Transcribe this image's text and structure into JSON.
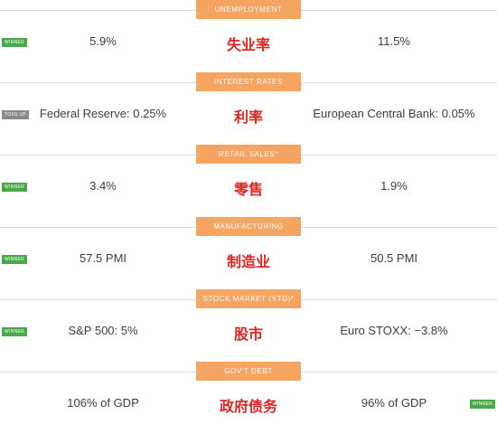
{
  "colors": {
    "section_tag": "#f5a461",
    "chinese_label": "#e02424",
    "winner_badge": "#4aa84a",
    "toss_up_badge": "#8a8a8a",
    "divider": "#dcdcdc"
  },
  "sections": [
    {
      "title": "UNEMPLOYMENT",
      "cn": "失业率",
      "left": "5.9%",
      "right": "11.5%",
      "badge": "WINNER",
      "badge_side": "left",
      "badge_type": "winner"
    },
    {
      "title": "INTEREST RATES",
      "cn": "利率",
      "left": "Federal Reserve: 0.25%",
      "right": "European Central Bank: 0.05%",
      "badge": "TOSS UP",
      "badge_side": "left",
      "badge_type": "toss-up"
    },
    {
      "title": "RETAIL SALES*",
      "cn": "零售",
      "left": "3.4%",
      "right": "1.9%",
      "badge": "WINNER",
      "badge_side": "left",
      "badge_type": "winner"
    },
    {
      "title": "MANUFACTURING",
      "cn": "制造业",
      "left": "57.5 PMI",
      "right": "50.5 PMI",
      "badge": "WINNER",
      "badge_side": "left",
      "badge_type": "winner"
    },
    {
      "title": "STOCK MARKET (YTD)*",
      "cn": "股市",
      "left": "S&P 500: 5%",
      "right": "Euro STOXX: −3.8%",
      "badge": "WINNER",
      "badge_side": "left",
      "badge_type": "winner"
    },
    {
      "title": "GOV'T DEBT",
      "cn": "政府债务",
      "left": "106% of GDP",
      "right": "96% of GDP",
      "badge": "WINNER",
      "badge_side": "right",
      "badge_type": "winner"
    }
  ]
}
